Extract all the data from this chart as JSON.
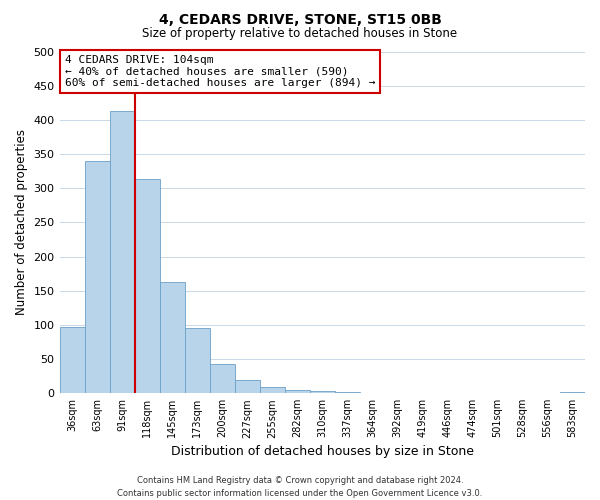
{
  "title": "4, CEDARS DRIVE, STONE, ST15 0BB",
  "subtitle": "Size of property relative to detached houses in Stone",
  "xlabel": "Distribution of detached houses by size in Stone",
  "ylabel": "Number of detached properties",
  "bar_labels": [
    "36sqm",
    "63sqm",
    "91sqm",
    "118sqm",
    "145sqm",
    "173sqm",
    "200sqm",
    "227sqm",
    "255sqm",
    "282sqm",
    "310sqm",
    "337sqm",
    "364sqm",
    "392sqm",
    "419sqm",
    "446sqm",
    "474sqm",
    "501sqm",
    "528sqm",
    "556sqm",
    "583sqm"
  ],
  "bar_values": [
    97,
    340,
    413,
    314,
    163,
    96,
    42,
    19,
    9,
    4,
    3,
    2,
    0,
    0,
    0,
    0,
    1,
    0,
    0,
    1,
    2
  ],
  "bar_color": "#b8d4ea",
  "bar_edge_color": "#6aa0c8",
  "vline_x": 2.5,
  "vline_color": "#cc0000",
  "ylim": [
    0,
    500
  ],
  "yticks": [
    0,
    50,
    100,
    150,
    200,
    250,
    300,
    350,
    400,
    450,
    500
  ],
  "annotation_title": "4 CEDARS DRIVE: 104sqm",
  "annotation_line1": "← 40% of detached houses are smaller (590)",
  "annotation_line2": "60% of semi-detached houses are larger (894) →",
  "annotation_box_color": "#ffffff",
  "annotation_box_edge": "#cc0000",
  "footer_line1": "Contains HM Land Registry data © Crown copyright and database right 2024.",
  "footer_line2": "Contains public sector information licensed under the Open Government Licence v3.0.",
  "background_color": "#ffffff",
  "grid_color": "#c8d8e8"
}
